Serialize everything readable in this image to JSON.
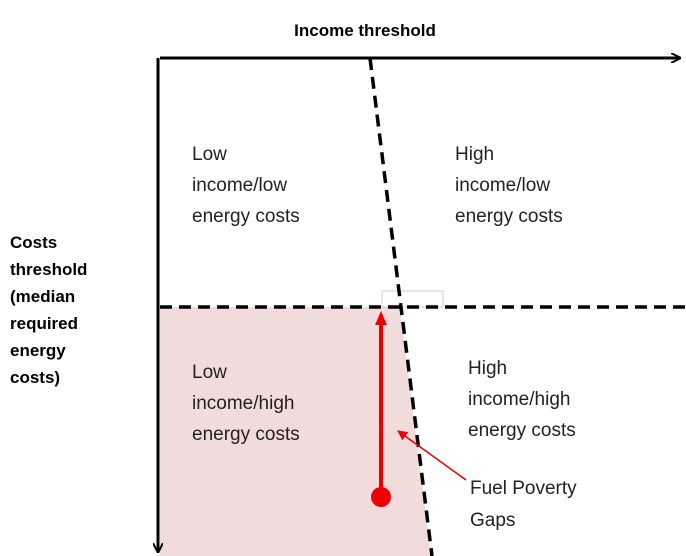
{
  "axes": {
    "x_label": "Income threshold",
    "y_label": [
      "Costs",
      "threshold",
      "(median",
      "required",
      "energy",
      "costs)"
    ]
  },
  "quadrants": [
    {
      "lines": [
        "Low",
        "income/low",
        "energy costs"
      ]
    },
    {
      "lines": [
        "High",
        "income/low",
        "energy costs"
      ]
    },
    {
      "lines": [
        "Low",
        "income/high",
        "energy costs"
      ]
    },
    {
      "lines": [
        "High",
        "income/high",
        "energy costs"
      ]
    }
  ],
  "annotation": {
    "lines": [
      "Fuel Poverty",
      "Gaps"
    ]
  }
}
